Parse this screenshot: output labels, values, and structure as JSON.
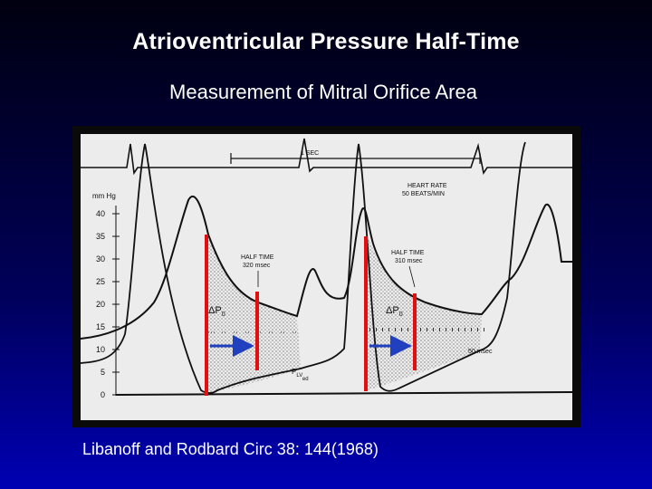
{
  "slide": {
    "title": "Atrioventricular Pressure Half-Time",
    "subtitle": "Measurement of Mitral Orifice Area",
    "citation": "Libanoff and Rodbard  Circ  38: 144(1968)"
  },
  "figure": {
    "unit_label": "mm Hg",
    "y_ticks": [
      "40",
      "35",
      "30",
      "25",
      "20",
      "15",
      "10",
      "5",
      "0"
    ],
    "time_marker": "1 SEC",
    "heart_rate_line1": "HEART RATE",
    "heart_rate_line2": "50 BEATS/MIN",
    "half_time_1": "HALF TIME",
    "half_time_1_value": "320 msec",
    "half_time_2": "HALF TIME",
    "half_time_2_value": "310 msec",
    "delta_p_1": "ΔP",
    "delta_p_1_sub": "0",
    "delta_p_2": "ΔP",
    "delta_p_2_sub": "0",
    "lv_label": "P",
    "lv_sub": "LV",
    "lv_sub2": "ed",
    "msec_label": "50 msec",
    "colors": {
      "measure_line": "#e01010",
      "half_time_arrow": "#2040c0",
      "paper": "#ececec",
      "trace": "#111111"
    }
  }
}
